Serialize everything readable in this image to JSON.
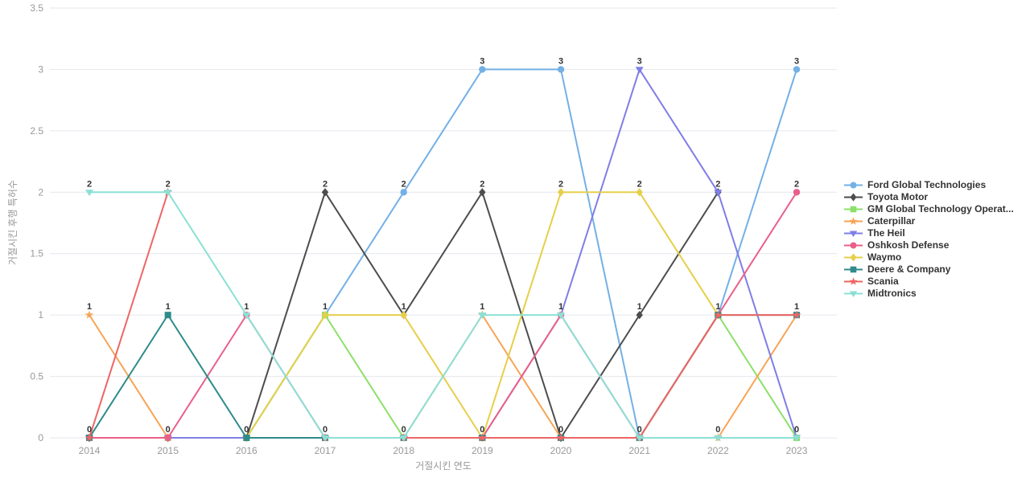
{
  "chart_data": {
    "type": "line",
    "x": [
      "2014",
      "2015",
      "2016",
      "2017",
      "2018",
      "2019",
      "2020",
      "2021",
      "2022",
      "2023"
    ],
    "xlabel": "거절시킨 연도",
    "ylabel": "거절시킨 후행 특허수",
    "ylim": [
      0,
      3.5
    ],
    "yticks": [
      "0",
      "0.5",
      "1",
      "1.5",
      "2",
      "2.5",
      "3",
      "3.5"
    ],
    "grid": true,
    "legend_position": "right",
    "point_labels": true,
    "series": [
      {
        "name": "Ford Global Technologies",
        "color": "#73b0e6",
        "symbol": "circle",
        "values": [
          0,
          0,
          0,
          1,
          2,
          3,
          3,
          0,
          1,
          3
        ]
      },
      {
        "name": "Toyota Motor",
        "color": "#4d4d4d",
        "symbol": "diamond",
        "values": [
          0,
          0,
          0,
          2,
          1,
          2,
          0,
          1,
          2,
          null
        ]
      },
      {
        "name": "GM Global Technology Operat...",
        "color": "#8ce068",
        "symbol": "rect",
        "values": [
          0,
          0,
          0,
          1,
          0,
          0,
          0,
          0,
          1,
          0
        ]
      },
      {
        "name": "Caterpillar",
        "color": "#f7a456",
        "symbol": "star",
        "values": [
          1,
          0,
          0,
          0,
          0,
          1,
          0,
          0,
          0,
          1
        ]
      },
      {
        "name": "The Heil",
        "color": "#7e7ee6",
        "symbol": "triangle-down",
        "values": [
          0,
          0,
          0,
          0,
          0,
          0,
          1,
          3,
          2,
          0
        ]
      },
      {
        "name": "Oshkosh Defense",
        "color": "#ea5f8a",
        "symbol": "circle",
        "values": [
          0,
          0,
          1,
          0,
          0,
          0,
          1,
          0,
          1,
          2
        ]
      },
      {
        "name": "Waymo",
        "color": "#e6cf4a",
        "symbol": "diamond",
        "values": [
          null,
          null,
          0,
          1,
          1,
          0,
          2,
          2,
          1,
          null
        ]
      },
      {
        "name": "Deere & Company",
        "color": "#2e8b8a",
        "symbol": "rect",
        "values": [
          0,
          1,
          0,
          0,
          0,
          0,
          0,
          0,
          1,
          1
        ]
      },
      {
        "name": "Scania",
        "color": "#ee6666",
        "symbol": "star",
        "values": [
          0,
          2,
          null,
          0,
          0,
          0,
          0,
          0,
          1,
          1
        ]
      },
      {
        "name": "Midtronics",
        "color": "#8be0d5",
        "symbol": "triangle-down",
        "values": [
          2,
          2,
          1,
          0,
          0,
          1,
          1,
          0,
          0,
          0
        ]
      }
    ]
  },
  "colors": {
    "background": "#ffffff",
    "gridline": "#e4e7ed",
    "tick_label": "#999999",
    "axis_name": "#999999",
    "point_label": "#333333",
    "legend_text": "#333333"
  }
}
